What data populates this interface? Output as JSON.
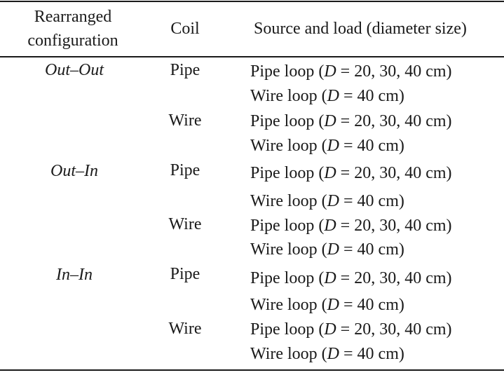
{
  "table": {
    "headers": {
      "config_line1": "Rearranged",
      "config_line2": "configuration",
      "coil": "Coil",
      "source_load": "Source and load (diameter size)"
    },
    "groups": [
      {
        "configuration": "Out–Out",
        "rows": [
          {
            "coil": "Pipe",
            "loads": [
              "Pipe loop (",
              "D",
              " = 20, 30, 40 cm)",
              "Wire loop (",
              "D",
              " = 40 cm)"
            ]
          },
          {
            "coil": "Wire",
            "loads": [
              "Pipe loop (",
              "D",
              " = 20, 30, 40 cm)",
              "Wire loop (",
              "D",
              " = 40 cm)"
            ]
          }
        ]
      },
      {
        "configuration": "Out–In",
        "rows": [
          {
            "coil": "Pipe",
            "loads": [
              "Pipe loop (",
              "D",
              " = 20, 30, 40 cm)",
              "Wire loop (",
              "D",
              " = 40 cm)"
            ]
          },
          {
            "coil": "Wire",
            "loads": [
              "Pipe loop (",
              "D",
              " = 20, 30, 40 cm)",
              "Wire loop (",
              "D",
              " = 40 cm)"
            ]
          }
        ]
      },
      {
        "configuration": "In–In",
        "rows": [
          {
            "coil": "Pipe",
            "loads": [
              "Pipe loop (",
              "D",
              " = 20, 30, 40 cm)",
              "Wire loop (",
              "D",
              " = 40 cm)"
            ]
          },
          {
            "coil": "Wire",
            "loads": [
              "Pipe loop (",
              "D",
              " = 20, 30, 40 cm)",
              "Wire loop (",
              "D",
              " = 40 cm)"
            ]
          }
        ]
      }
    ]
  }
}
